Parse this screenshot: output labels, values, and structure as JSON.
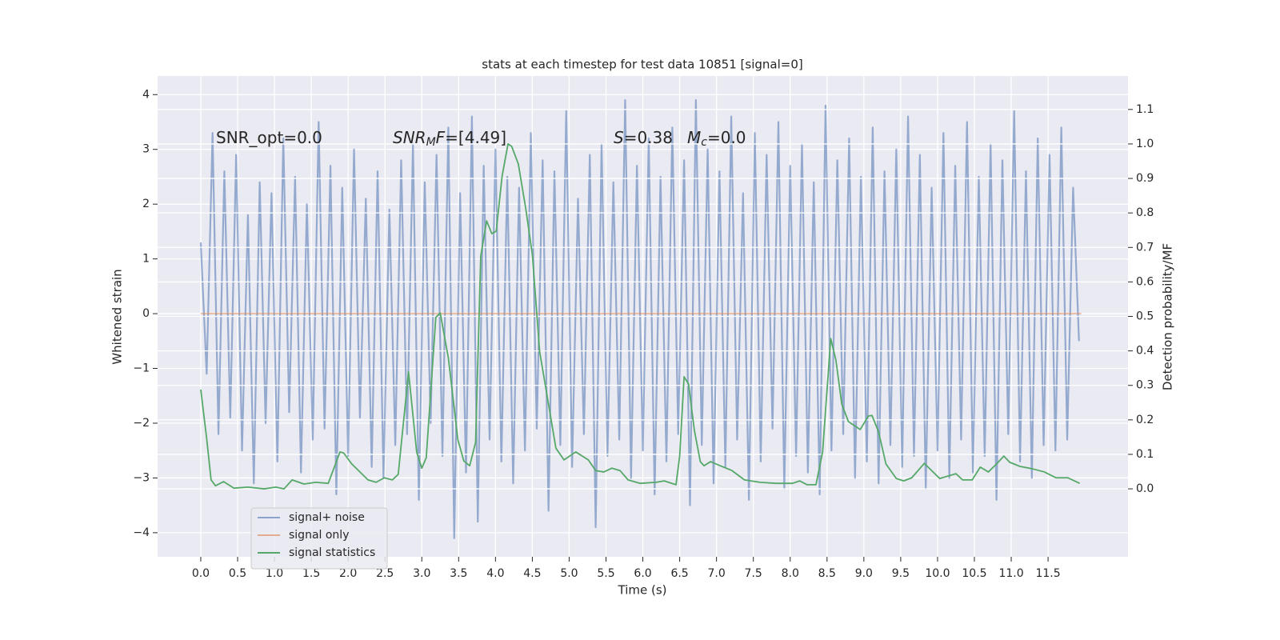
{
  "chart_data": {
    "type": "line",
    "title": "stats at each timestep for test data 10851 [signal=0]",
    "xlabel": "Time (s)",
    "ylabel": "Whitened strain",
    "y2label": "Detection probability/MF",
    "xlim": [
      -0.586,
      12.585
    ],
    "ylim": [
      -4.44,
      4.34
    ],
    "y2lim": [
      -0.197,
      1.197
    ],
    "xticks": [
      {
        "value": 0,
        "label": "0.0"
      },
      0.5,
      {
        "value": 1,
        "label": "1.0"
      },
      1.5,
      {
        "value": 2,
        "label": "2.0"
      },
      2.5,
      {
        "value": 3,
        "label": "3.0"
      },
      3.5,
      {
        "value": 4,
        "label": "4.0"
      },
      4.5,
      {
        "value": 5,
        "label": "5.0"
      },
      5.5,
      {
        "value": 6,
        "label": "6.0"
      },
      6.5,
      {
        "value": 7,
        "label": "7.0"
      },
      7.5,
      {
        "value": 8,
        "label": "8.0"
      },
      8.5,
      {
        "value": 9,
        "label": "9.0"
      },
      9.5,
      {
        "value": 10,
        "label": "10.0"
      },
      10.5,
      {
        "value": 11,
        "label": "11.0"
      },
      11.5
    ],
    "yticks": [
      {
        "value": -4,
        "label": "−4"
      },
      {
        "value": -3,
        "label": "−3"
      },
      {
        "value": -2,
        "label": "−2"
      },
      {
        "value": -1,
        "label": "−1"
      },
      0,
      1,
      2,
      3,
      4
    ],
    "y2ticks": [
      {
        "value": 0,
        "label": "0.0"
      },
      0.1,
      0.2,
      0.3,
      0.4,
      0.5,
      0.6,
      0.7,
      0.8,
      0.9,
      {
        "value": 1,
        "label": "1.0"
      },
      1.1
    ],
    "grid": true,
    "legend": "lower left",
    "annotations": [
      {
        "parts": [
          {
            "text": "SNR_opt=0.0",
            "style": "normal"
          }
        ]
      },
      {
        "parts": [
          {
            "text": "SNR",
            "style": "italic"
          },
          {
            "text": "M",
            "style": "italic-sub"
          },
          {
            "text": "F",
            "style": "italic"
          },
          {
            "text": "=[4.49]",
            "style": "normal"
          }
        ]
      },
      {
        "parts": [
          {
            "text": "S",
            "style": "italic"
          },
          {
            "text": "=0.38",
            "style": "normal"
          }
        ]
      },
      {
        "parts": [
          {
            "text": "M",
            "style": "italic"
          },
          {
            "text": "c",
            "style": "italic-sub"
          },
          {
            "text": "=0.0",
            "style": "normal"
          }
        ]
      }
    ],
    "series": [
      {
        "name": "signal+ noise",
        "color": "#4c72b0",
        "axis": "y",
        "x": [
          0,
          0.08,
          0.16,
          0.24,
          0.32,
          0.4,
          0.48,
          0.56,
          0.64,
          0.72,
          0.8,
          0.88,
          0.96,
          1.04,
          1.12,
          1.2,
          1.28,
          1.36,
          1.44,
          1.52,
          1.6,
          1.68,
          1.76,
          1.84,
          1.92,
          2,
          2.08,
          2.16,
          2.24,
          2.32,
          2.4,
          2.48,
          2.56,
          2.64,
          2.72,
          2.8,
          2.88,
          2.96,
          3.04,
          3.12,
          3.2,
          3.28,
          3.36,
          3.44,
          3.52,
          3.6,
          3.68,
          3.76,
          3.84,
          3.92,
          4,
          4.08,
          4.16,
          4.24,
          4.32,
          4.4,
          4.48,
          4.56,
          4.64,
          4.72,
          4.8,
          4.88,
          4.96,
          5.04,
          5.12,
          5.2,
          5.28,
          5.36,
          5.44,
          5.52,
          5.6,
          5.68,
          5.76,
          5.84,
          5.92,
          6,
          6.08,
          6.16,
          6.24,
          6.32,
          6.4,
          6.48,
          6.56,
          6.64,
          6.72,
          6.8,
          6.88,
          6.96,
          7.04,
          7.12,
          7.2,
          7.28,
          7.36,
          7.44,
          7.52,
          7.6,
          7.68,
          7.76,
          7.84,
          7.92,
          8,
          8.08,
          8.16,
          8.24,
          8.32,
          8.4,
          8.48,
          8.56,
          8.64,
          8.72,
          8.8,
          8.88,
          8.96,
          9.04,
          9.12,
          9.2,
          9.28,
          9.36,
          9.44,
          9.52,
          9.6,
          9.68,
          9.76,
          9.84,
          9.92,
          10,
          10.08,
          10.16,
          10.24,
          10.32,
          10.4,
          10.48,
          10.56,
          10.64,
          10.72,
          10.8,
          10.88,
          10.96,
          11.04,
          11.12,
          11.2,
          11.28,
          11.36,
          11.44,
          11.52,
          11.6,
          11.68,
          11.76,
          11.84,
          11.92
        ],
        "values": [
          1.3,
          -1.1,
          3.3,
          -2.2,
          2.6,
          -1.9,
          2.9,
          -2.5,
          1.8,
          -3.1,
          2.4,
          -2.0,
          2.2,
          -2.7,
          3.2,
          -1.8,
          2.5,
          -2.9,
          2.0,
          -2.3,
          3.5,
          -2.1,
          2.7,
          -3.3,
          2.3,
          -2.6,
          3.0,
          -1.9,
          2.1,
          -2.8,
          2.6,
          -3.0,
          1.9,
          -2.4,
          2.8,
          -2.2,
          3.1,
          -3.4,
          2.4,
          -2.0,
          2.9,
          -2.6,
          3.4,
          -4.1,
          2.2,
          -2.9,
          3.6,
          -3.8,
          2.7,
          -2.3,
          3.0,
          -2.7,
          2.5,
          -3.1,
          2.3,
          -2.5,
          3.3,
          -2.1,
          2.8,
          -3.6,
          2.6,
          -2.4,
          3.7,
          -2.8,
          2.1,
          -2.2,
          2.9,
          -3.9,
          3.1,
          -2.6,
          2.4,
          -2.3,
          3.9,
          -3.0,
          2.7,
          -2.5,
          3.2,
          -3.3,
          2.5,
          -2.7,
          3.4,
          -2.2,
          2.8,
          -3.5,
          3.9,
          -2.4,
          3.0,
          -3.1,
          2.6,
          -2.8,
          3.6,
          -2.3,
          2.2,
          -3.4,
          3.3,
          -2.7,
          2.9,
          -2.1,
          3.5,
          -3.2,
          2.7,
          -2.6,
          3.1,
          -2.9,
          2.4,
          -3.3,
          3.8,
          -2.5,
          2.8,
          -2.2,
          3.2,
          -3.0,
          2.5,
          -2.7,
          3.4,
          -3.1,
          2.6,
          -2.4,
          3.0,
          -2.8,
          3.6,
          -2.6,
          2.9,
          -3.2,
          2.3,
          -2.5,
          3.3,
          -3.0,
          2.7,
          -2.3,
          3.5,
          -2.9,
          2.5,
          -2.6,
          3.1,
          -3.4,
          2.8,
          -2.2,
          3.7,
          -2.7,
          2.6,
          -3.0,
          3.2,
          -2.4,
          2.9,
          -2.5,
          3.4,
          -2.3,
          2.3,
          -0.5
        ]
      },
      {
        "name": "signal only",
        "color": "#dd8452",
        "axis": "y",
        "x": [
          0,
          11.95
        ],
        "values": [
          0,
          0
        ]
      },
      {
        "name": "signal statistics",
        "color": "#55a868",
        "axis": "y2",
        "x": [
          0,
          0.08,
          0.14,
          0.2,
          0.31,
          0.45,
          0.64,
          0.86,
          1.02,
          1.13,
          1.24,
          1.4,
          1.56,
          1.73,
          1.89,
          1.94,
          2.05,
          2.27,
          2.38,
          2.49,
          2.6,
          2.68,
          2.82,
          2.93,
          3.0,
          3.06,
          3.19,
          3.25,
          3.36,
          3.49,
          3.57,
          3.65,
          3.73,
          3.8,
          3.88,
          3.95,
          4.01,
          4.09,
          4.17,
          4.22,
          4.31,
          4.41,
          4.5,
          4.6,
          4.71,
          4.82,
          4.93,
          5.09,
          5.26,
          5.36,
          5.47,
          5.58,
          5.69,
          5.8,
          5.96,
          6.18,
          6.29,
          6.45,
          6.5,
          6.56,
          6.62,
          6.7,
          6.78,
          6.83,
          6.92,
          7.05,
          7.21,
          7.38,
          7.59,
          7.81,
          8.03,
          8.13,
          8.23,
          8.35,
          8.44,
          8.55,
          8.62,
          8.7,
          8.79,
          8.95,
          9.06,
          9.11,
          9.2,
          9.3,
          9.44,
          9.54,
          9.65,
          9.82,
          9.92,
          10.03,
          10.14,
          10.25,
          10.34,
          10.47,
          10.58,
          10.69,
          10.8,
          10.9,
          10.98,
          11.12,
          11.29,
          11.45,
          11.61,
          11.77,
          11.93
        ],
        "values": [
          0.288,
          0.146,
          0.026,
          0.009,
          0.021,
          0.002,
          0.005,
          0.0,
          0.005,
          0.0,
          0.026,
          0.014,
          0.019,
          0.016,
          0.107,
          0.104,
          0.072,
          0.026,
          0.019,
          0.032,
          0.026,
          0.042,
          0.339,
          0.107,
          0.06,
          0.09,
          0.497,
          0.51,
          0.38,
          0.142,
          0.081,
          0.067,
          0.135,
          0.675,
          0.777,
          0.74,
          0.747,
          0.907,
          1.0,
          0.993,
          0.942,
          0.814,
          0.68,
          0.397,
          0.258,
          0.118,
          0.084,
          0.107,
          0.084,
          0.053,
          0.049,
          0.06,
          0.053,
          0.026,
          0.016,
          0.019,
          0.023,
          0.012,
          0.095,
          0.325,
          0.304,
          0.169,
          0.079,
          0.067,
          0.079,
          0.067,
          0.053,
          0.026,
          0.019,
          0.016,
          0.016,
          0.023,
          0.012,
          0.012,
          0.107,
          0.436,
          0.374,
          0.246,
          0.195,
          0.172,
          0.211,
          0.213,
          0.165,
          0.072,
          0.03,
          0.023,
          0.032,
          0.074,
          0.053,
          0.03,
          0.037,
          0.044,
          0.026,
          0.026,
          0.063,
          0.049,
          0.072,
          0.095,
          0.077,
          0.065,
          0.058,
          0.049,
          0.032,
          0.032,
          0.016
        ]
      }
    ]
  }
}
